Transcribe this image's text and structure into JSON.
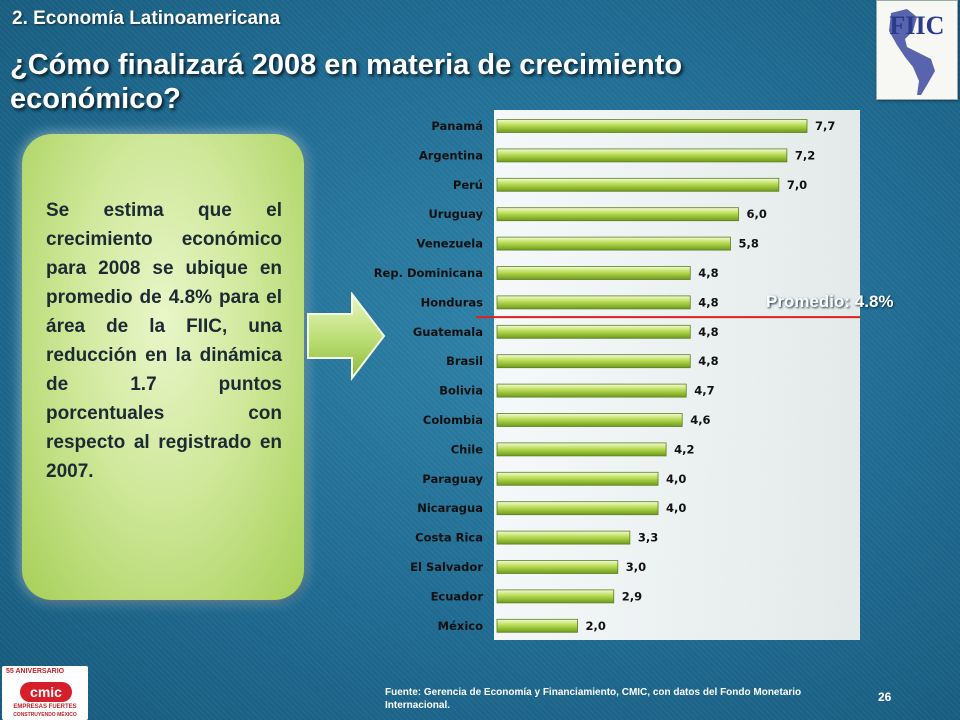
{
  "header": {
    "section": "2. Economía Latinoamericana",
    "title": "¿Cómo finalizará 2008 en materia de crecimiento económico?"
  },
  "logo_fiic": {
    "text": "FIIC"
  },
  "callout": {
    "text": "Se estima que el crecimiento económico para 2008 se ubique en promedio de 4.8% para el área de la FIIC, una reducción en la dinámica de 1.7 puntos porcentuales con respecto al registrado en 2007."
  },
  "average": {
    "label": "Promedio: 4.8%",
    "value": 4.8,
    "color": "#e02020"
  },
  "chart_data": {
    "type": "bar",
    "orientation": "horizontal",
    "categories": [
      "Panamá",
      "Argentina",
      "Perú",
      "Uruguay",
      "Venezuela",
      "Rep. Dominicana",
      "Honduras",
      "Guatemala",
      "Brasil",
      "Bolivia",
      "Colombia",
      "Chile",
      "Paraguay",
      "Nicaragua",
      "Costa Rica",
      "El Salvador",
      "Ecuador",
      "México"
    ],
    "values": [
      7.7,
      7.2,
      7.0,
      6.0,
      5.8,
      4.8,
      4.8,
      4.8,
      4.8,
      4.7,
      4.6,
      4.2,
      4.0,
      4.0,
      3.3,
      3.0,
      2.9,
      2.0
    ],
    "value_labels": [
      "7,7",
      "7,2",
      "7,0",
      "6,0",
      "5,8",
      "4,8",
      "4,8",
      "4,8",
      "4,8",
      "4,7",
      "4,6",
      "4,2",
      "4,0",
      "4,0",
      "3,3",
      "3,0",
      "2,9",
      "2,0"
    ],
    "xlim": [
      0,
      7.7
    ],
    "grid": false,
    "bar_color": "#9ccc2e"
  },
  "footer": {
    "source": "Fuente: Gerencia de Economía y Financiamiento, CMIC, con datos del  Fondo Monetario Internacional.",
    "page": "26"
  },
  "logo_cmic": {
    "anniversary": "55 ANIVERSARIO",
    "name": "cmic",
    "tagline1": "EMPRESAS FUERTES",
    "tagline2": "CONSTRUYENDO MÉXICO"
  }
}
